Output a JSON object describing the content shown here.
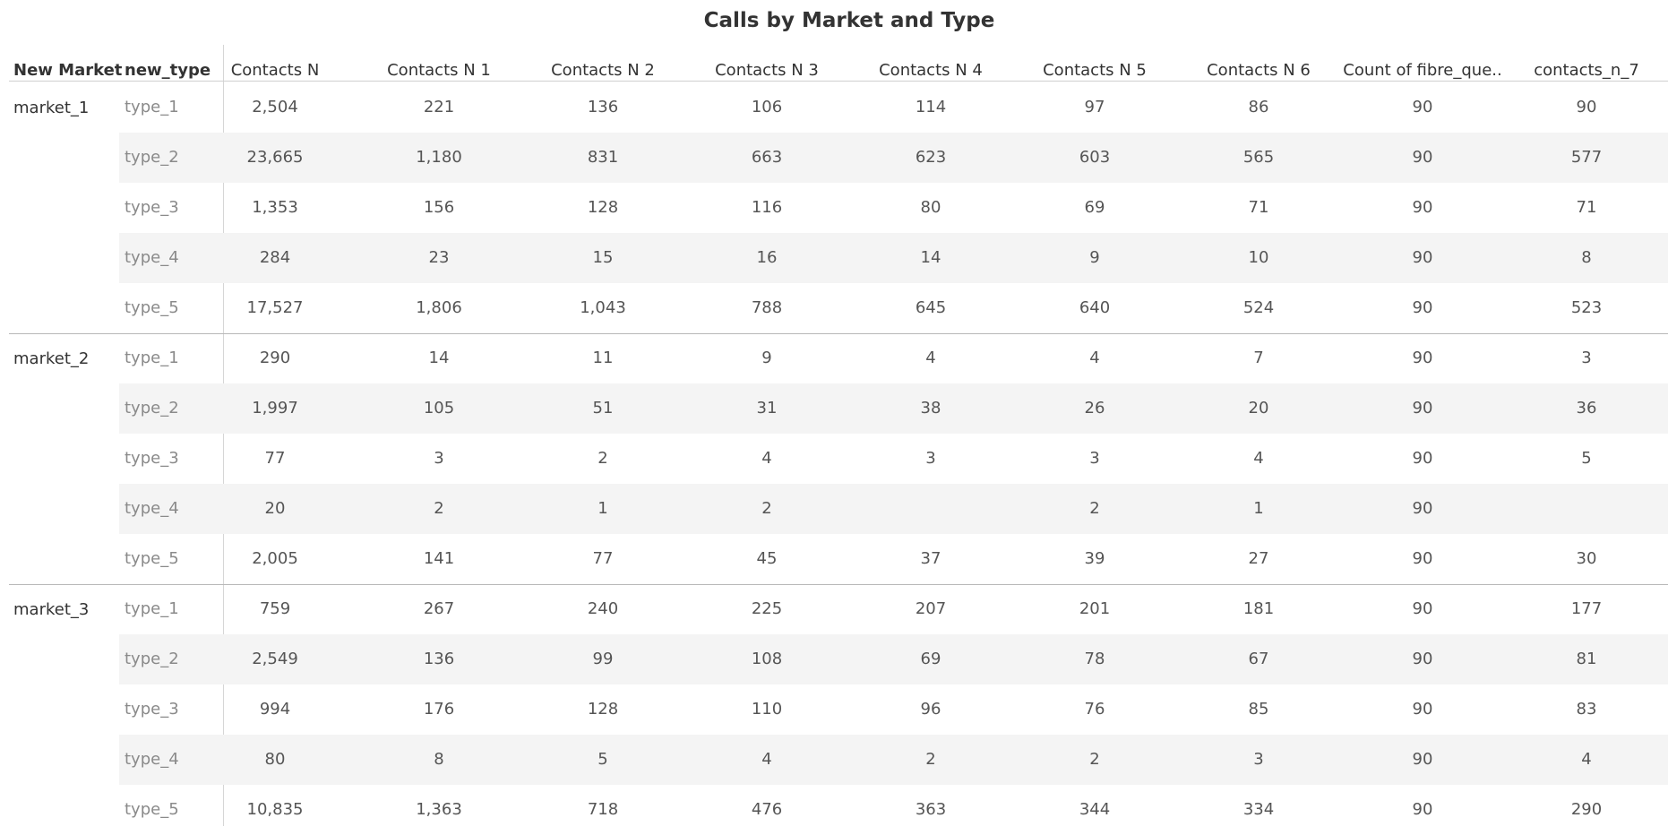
{
  "chart_data": {
    "type": "table",
    "title": "Calls by Market and Type",
    "row_headers": [
      "New Market",
      "new_type"
    ],
    "columns": [
      "Contacts N",
      "Contacts N 1",
      "Contacts N 2",
      "Contacts N 3",
      "Contacts N 4",
      "Contacts N 5",
      "Contacts N 6",
      "Count of fibre_que..",
      "contacts_n_7"
    ],
    "groups": [
      {
        "market": "market_1",
        "rows": [
          {
            "type": "type_1",
            "values": [
              "2,504",
              "221",
              "136",
              "106",
              "114",
              "97",
              "86",
              "90",
              "90"
            ]
          },
          {
            "type": "type_2",
            "values": [
              "23,665",
              "1,180",
              "831",
              "663",
              "623",
              "603",
              "565",
              "90",
              "577"
            ]
          },
          {
            "type": "type_3",
            "values": [
              "1,353",
              "156",
              "128",
              "116",
              "80",
              "69",
              "71",
              "90",
              "71"
            ]
          },
          {
            "type": "type_4",
            "values": [
              "284",
              "23",
              "15",
              "16",
              "14",
              "9",
              "10",
              "90",
              "8"
            ]
          },
          {
            "type": "type_5",
            "values": [
              "17,527",
              "1,806",
              "1,043",
              "788",
              "645",
              "640",
              "524",
              "90",
              "523"
            ]
          }
        ]
      },
      {
        "market": "market_2",
        "rows": [
          {
            "type": "type_1",
            "values": [
              "290",
              "14",
              "11",
              "9",
              "4",
              "4",
              "7",
              "90",
              "3"
            ]
          },
          {
            "type": "type_2",
            "values": [
              "1,997",
              "105",
              "51",
              "31",
              "38",
              "26",
              "20",
              "90",
              "36"
            ]
          },
          {
            "type": "type_3",
            "values": [
              "77",
              "3",
              "2",
              "4",
              "3",
              "3",
              "4",
              "90",
              "5"
            ]
          },
          {
            "type": "type_4",
            "values": [
              "20",
              "2",
              "1",
              "2",
              "",
              "2",
              "1",
              "90",
              ""
            ]
          },
          {
            "type": "type_5",
            "values": [
              "2,005",
              "141",
              "77",
              "45",
              "37",
              "39",
              "27",
              "90",
              "30"
            ]
          }
        ]
      },
      {
        "market": "market_3",
        "rows": [
          {
            "type": "type_1",
            "values": [
              "759",
              "267",
              "240",
              "225",
              "207",
              "201",
              "181",
              "90",
              "177"
            ]
          },
          {
            "type": "type_2",
            "values": [
              "2,549",
              "136",
              "99",
              "108",
              "69",
              "78",
              "67",
              "90",
              "81"
            ]
          },
          {
            "type": "type_3",
            "values": [
              "994",
              "176",
              "128",
              "110",
              "96",
              "76",
              "85",
              "90",
              "83"
            ]
          },
          {
            "type": "type_4",
            "values": [
              "80",
              "8",
              "5",
              "4",
              "2",
              "2",
              "3",
              "90",
              "4"
            ]
          },
          {
            "type": "type_5",
            "values": [
              "10,835",
              "1,363",
              "718",
              "476",
              "363",
              "344",
              "334",
              "90",
              "290"
            ]
          }
        ]
      }
    ]
  }
}
